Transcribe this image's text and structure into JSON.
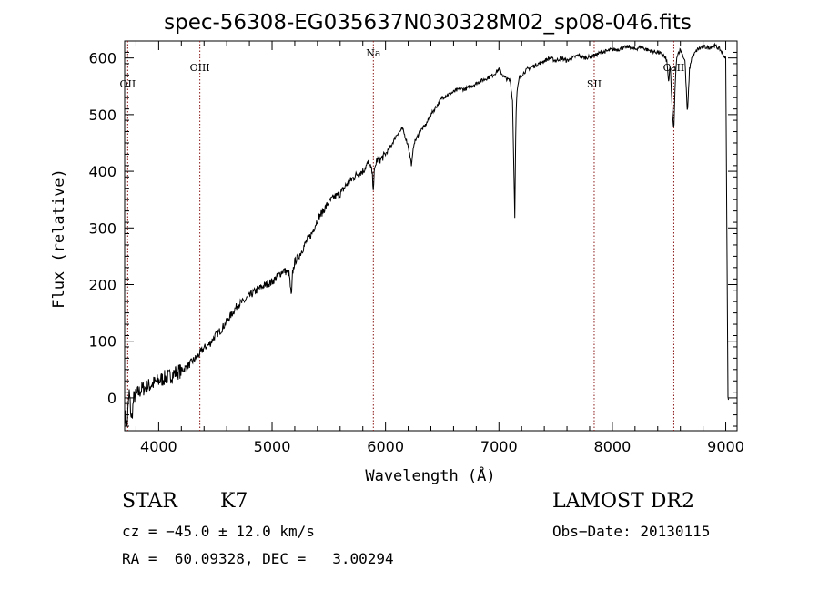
{
  "chart_data": {
    "type": "line",
    "title": "spec-56308-EG035637N030328M02_sp08-046.fits",
    "xlabel": "Wavelength (Å)",
    "ylabel": "Flux (relative)",
    "xlim": [
      3700,
      9100
    ],
    "ylim": [
      -58,
      630
    ],
    "x_ticks": [
      4000,
      5000,
      6000,
      7000,
      8000,
      9000
    ],
    "y_ticks": [
      0,
      100,
      200,
      300,
      400,
      500,
      600
    ],
    "grid": false,
    "series": [
      {
        "color": "#000000",
        "x": [
          3700,
          3720,
          3740,
          3760,
          3780,
          3800,
          3850,
          3900,
          3950,
          4000,
          4050,
          4100,
          4150,
          4200,
          4250,
          4300,
          4350,
          4400,
          4450,
          4500,
          4550,
          4600,
          4650,
          4700,
          4750,
          4800,
          4850,
          4900,
          4950,
          5000,
          5050,
          5100,
          5150,
          5170,
          5180,
          5200,
          5250,
          5300,
          5350,
          5400,
          5450,
          5500,
          5550,
          5600,
          5650,
          5700,
          5750,
          5800,
          5850,
          5880,
          5893,
          5900,
          5920,
          5950,
          6000,
          6050,
          6100,
          6150,
          6200,
          6230,
          6250,
          6280,
          6300,
          6350,
          6400,
          6450,
          6500,
          6550,
          6600,
          6650,
          6700,
          6750,
          6800,
          6850,
          6900,
          6950,
          7000,
          7050,
          7100,
          7120,
          7140,
          7150,
          7160,
          7180,
          7200,
          7250,
          7300,
          7350,
          7400,
          7450,
          7500,
          7550,
          7600,
          7650,
          7700,
          7750,
          7800,
          7850,
          7900,
          7950,
          8000,
          8050,
          8100,
          8150,
          8200,
          8250,
          8300,
          8350,
          8400,
          8450,
          8480,
          8498,
          8510,
          8530,
          8542,
          8555,
          8570,
          8600,
          8640,
          8662,
          8680,
          8700,
          8750,
          8800,
          8850,
          8900,
          8950,
          8980,
          9000,
          9010,
          9020,
          9025
        ],
        "y": [
          -30,
          -50,
          10,
          -40,
          0,
          5,
          15,
          20,
          25,
          30,
          35,
          38,
          45,
          48,
          55,
          65,
          75,
          88,
          95,
          110,
          120,
          135,
          150,
          165,
          170,
          180,
          188,
          195,
          200,
          205,
          215,
          225,
          220,
          175,
          220,
          240,
          255,
          275,
          290,
          315,
          330,
          345,
          355,
          360,
          375,
          385,
          395,
          400,
          415,
          400,
          370,
          395,
          420,
          420,
          430,
          445,
          465,
          475,
          445,
          410,
          450,
          460,
          470,
          480,
          500,
          515,
          530,
          535,
          540,
          545,
          545,
          550,
          555,
          560,
          565,
          570,
          580,
          565,
          560,
          525,
          320,
          500,
          540,
          565,
          570,
          580,
          585,
          590,
          595,
          600,
          595,
          600,
          595,
          600,
          605,
          600,
          602,
          605,
          610,
          612,
          615,
          615,
          618,
          620,
          615,
          620,
          615,
          612,
          610,
          605,
          595,
          555,
          590,
          500,
          470,
          560,
          605,
          615,
          595,
          500,
          580,
          600,
          615,
          620,
          618,
          622,
          615,
          605,
          600,
          300,
          0,
          0
        ]
      }
    ],
    "lines": [
      {
        "label": "OII",
        "x": 3727,
        "color": "#8b1a1a"
      },
      {
        "label": "OIII",
        "x": 4363,
        "color": "#8b1a1a"
      },
      {
        "label": "Na",
        "x": 5893,
        "color": "#8b1a1a"
      },
      {
        "label": "SII",
        "x": 7840,
        "color": "#8b1a1a"
      },
      {
        "label": "CaII",
        "x": 8542,
        "color": "#8b1a1a"
      }
    ]
  },
  "info": {
    "object_class": "STAR",
    "subclass": "K7",
    "survey": "LAMOST DR2",
    "cz_text": "cz = −45.0 ± 12.0 km/s",
    "obs_date_text": "Obs−Date: 20130115",
    "radec_text": "RA =  60.09328, DEC =   3.00294"
  }
}
